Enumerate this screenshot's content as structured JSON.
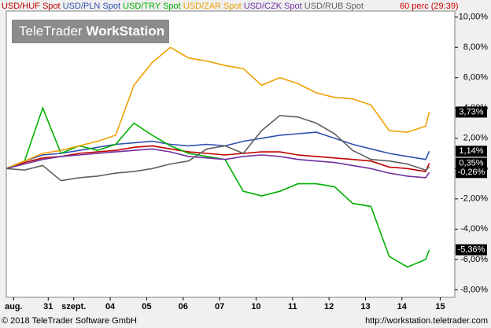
{
  "chart_data": {
    "type": "line",
    "timeframe_label": "60 perc (29:39)",
    "watermark": {
      "brand": "TeleTrader",
      "product": "WorkStation"
    },
    "footer_left": "© 2018 TeleTrader Software GmbH",
    "footer_right": "http://workstation.teletrader.com",
    "x": [
      0,
      0.5,
      1,
      1.5,
      2,
      2.5,
      3,
      3.5,
      4,
      4.5,
      5,
      5.5,
      6,
      6.5,
      7,
      7.5,
      8,
      8.5,
      9,
      9.5,
      10,
      10.5,
      11,
      11.5,
      11.6
    ],
    "xlim": [
      0,
      12.3
    ],
    "xticks": [
      {
        "value": 0.2,
        "label": "aug."
      },
      {
        "value": 1.15,
        "label": "31"
      },
      {
        "value": 1.85,
        "label": "szept."
      },
      {
        "value": 2.85,
        "label": "04"
      },
      {
        "value": 3.85,
        "label": "05"
      },
      {
        "value": 4.85,
        "label": "06"
      },
      {
        "value": 5.85,
        "label": "07"
      },
      {
        "value": 6.85,
        "label": "10"
      },
      {
        "value": 7.85,
        "label": "11"
      },
      {
        "value": 8.85,
        "label": "12"
      },
      {
        "value": 9.85,
        "label": "13"
      },
      {
        "value": 10.85,
        "label": "14"
      },
      {
        "value": 11.9,
        "label": "15"
      }
    ],
    "ylim": [
      -8.5,
      10.4
    ],
    "yticks": [
      {
        "value": 10,
        "label": "10,00%"
      },
      {
        "value": 8,
        "label": "8,00%"
      },
      {
        "value": 6,
        "label": "6,00%"
      },
      {
        "value": 4,
        "label": "4,00%"
      },
      {
        "value": 2,
        "label": "2,00%"
      },
      {
        "value": 0,
        "label": "0,00%"
      },
      {
        "value": -2,
        "label": "-2,00%"
      },
      {
        "value": -4,
        "label": "-4,00%"
      },
      {
        "value": -6,
        "label": "-6,00%"
      },
      {
        "value": -8,
        "label": "-8,00%"
      }
    ],
    "series": [
      {
        "name": "USD/HUF Spot",
        "color": "#c00000",
        "values": [
          0,
          0.4,
          0.7,
          0.8,
          1.0,
          1.1,
          1.2,
          1.4,
          1.5,
          1.3,
          1.1,
          1.0,
          0.9,
          1.0,
          1.1,
          1.1,
          0.9,
          0.8,
          0.7,
          0.6,
          0.5,
          0.1,
          0.0,
          -0.2,
          0.35
        ],
        "value_labels": [
          null,
          null,
          null,
          null,
          null,
          null,
          null,
          null,
          null,
          null,
          null,
          null,
          null,
          null,
          null,
          null,
          null,
          null,
          null,
          null,
          null,
          null,
          null,
          null,
          "0,35%"
        ]
      },
      {
        "name": "USD/PLN Spot",
        "color": "#3050b0",
        "values": [
          0,
          0.5,
          0.9,
          1.0,
          1.2,
          1.4,
          1.6,
          1.7,
          1.8,
          1.6,
          1.5,
          1.6,
          1.5,
          1.8,
          2.0,
          2.2,
          2.3,
          2.4,
          2.0,
          1.6,
          1.3,
          1.0,
          0.8,
          0.6,
          1.14
        ],
        "value_labels": [
          null,
          null,
          null,
          null,
          null,
          null,
          null,
          null,
          null,
          null,
          null,
          null,
          null,
          null,
          null,
          null,
          null,
          null,
          null,
          null,
          null,
          null,
          null,
          null,
          "1,14%"
        ]
      },
      {
        "name": "USD/TRY Spot",
        "color": "#00b000",
        "values": [
          0,
          0.5,
          4.0,
          1.0,
          1.5,
          1.2,
          1.6,
          3.0,
          2.2,
          1.5,
          1.0,
          0.8,
          0.6,
          -1.5,
          -1.8,
          -1.5,
          -1.0,
          -1.0,
          -1.2,
          -2.3,
          -2.5,
          -5.8,
          -6.5,
          -6.0,
          -5.36
        ],
        "value_labels": [
          null,
          null,
          null,
          null,
          null,
          null,
          null,
          null,
          null,
          null,
          null,
          null,
          null,
          null,
          null,
          null,
          null,
          null,
          null,
          null,
          null,
          null,
          null,
          null,
          "-5,36%"
        ]
      },
      {
        "name": "USD/ZAR Spot",
        "color": "#f0a000",
        "values": [
          0,
          0.5,
          1.0,
          1.2,
          1.5,
          1.8,
          2.2,
          5.5,
          7.0,
          8.0,
          7.3,
          7.1,
          6.8,
          6.6,
          5.5,
          6.0,
          5.6,
          5.0,
          4.7,
          4.6,
          4.2,
          2.5,
          2.4,
          2.8,
          3.73
        ],
        "value_labels": [
          null,
          null,
          null,
          null,
          null,
          null,
          null,
          null,
          null,
          null,
          null,
          null,
          null,
          null,
          null,
          null,
          null,
          null,
          null,
          null,
          null,
          null,
          null,
          null,
          "3,73%"
        ]
      },
      {
        "name": "USD/CZK Spot",
        "color": "#7030a0",
        "values": [
          0,
          0.3,
          0.6,
          0.8,
          0.9,
          1.0,
          1.1,
          1.2,
          1.3,
          1.1,
          0.8,
          0.7,
          0.6,
          0.8,
          0.9,
          0.8,
          0.6,
          0.5,
          0.4,
          0.2,
          0.0,
          -0.3,
          -0.5,
          -0.6,
          -0.26
        ],
        "value_labels": [
          null,
          null,
          null,
          null,
          null,
          null,
          null,
          null,
          null,
          null,
          null,
          null,
          null,
          null,
          null,
          null,
          null,
          null,
          null,
          null,
          null,
          null,
          null,
          null,
          "-0,26%"
        ]
      },
      {
        "name": "USD/RUB Spot",
        "color": "#606060",
        "values": [
          0,
          -0.1,
          0.2,
          -0.8,
          -0.6,
          -0.5,
          -0.3,
          -0.2,
          0.0,
          0.3,
          0.5,
          1.3,
          1.5,
          1.0,
          2.5,
          3.5,
          3.4,
          3.0,
          2.3,
          1.2,
          0.6,
          0.5,
          0.3,
          -0.1,
          0.1
        ]
      }
    ]
  }
}
